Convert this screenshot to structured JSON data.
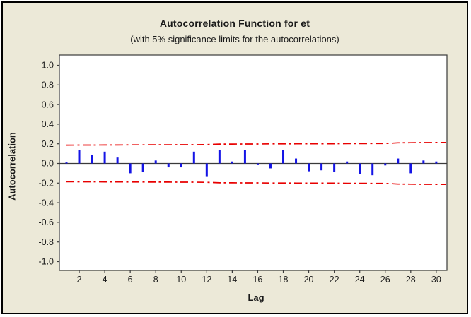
{
  "chart_data": {
    "type": "bar",
    "title": "Autocorrelation Function for et",
    "subtitle": "(with 5% significance limits for the autocorrelations)",
    "xlabel": "Lag",
    "ylabel": "Autocorrelation",
    "x": [
      1,
      2,
      3,
      4,
      5,
      6,
      7,
      8,
      9,
      10,
      11,
      12,
      13,
      14,
      15,
      16,
      17,
      18,
      19,
      20,
      21,
      22,
      23,
      24,
      25,
      26,
      27,
      28,
      29,
      30
    ],
    "values": [
      0.01,
      0.14,
      0.09,
      0.12,
      0.06,
      -0.1,
      -0.09,
      0.03,
      -0.04,
      -0.04,
      0.12,
      -0.13,
      0.14,
      0.02,
      0.14,
      -0.01,
      -0.05,
      0.14,
      0.05,
      -0.08,
      -0.07,
      -0.09,
      0.02,
      -0.11,
      -0.12,
      -0.02,
      0.05,
      -0.1,
      0.03,
      0.02
    ],
    "significance_level": "5%",
    "limits_upper": [
      0.186,
      0.187,
      0.187,
      0.188,
      0.188,
      0.189,
      0.189,
      0.19,
      0.19,
      0.191,
      0.191,
      0.192,
      0.197,
      0.197,
      0.198,
      0.198,
      0.199,
      0.199,
      0.2,
      0.2,
      0.201,
      0.201,
      0.202,
      0.202,
      0.203,
      0.203,
      0.21,
      0.211,
      0.212,
      0.213
    ],
    "limits_lower": [
      -0.186,
      -0.187,
      -0.187,
      -0.188,
      -0.188,
      -0.189,
      -0.189,
      -0.19,
      -0.19,
      -0.191,
      -0.191,
      -0.192,
      -0.197,
      -0.197,
      -0.198,
      -0.198,
      -0.199,
      -0.199,
      -0.2,
      -0.2,
      -0.201,
      -0.201,
      -0.202,
      -0.202,
      -0.203,
      -0.203,
      -0.21,
      -0.211,
      -0.212,
      -0.213
    ],
    "ylim": [
      -1.0,
      1.0
    ],
    "xlim": [
      0.5,
      30.8
    ],
    "yticks": [
      "1.0",
      "0.8",
      "0.6",
      "0.4",
      "0.2",
      "0.0",
      "-0.2",
      "-0.4",
      "-0.6",
      "-0.8",
      "-1.0"
    ],
    "ytick_values": [
      1.0,
      0.8,
      0.6,
      0.4,
      0.2,
      0.0,
      -0.2,
      -0.4,
      -0.6,
      -0.8,
      -1.0
    ],
    "xticks": [
      2,
      4,
      6,
      8,
      10,
      12,
      14,
      16,
      18,
      20,
      22,
      24,
      26,
      28,
      30
    ],
    "grid": "off",
    "legend": "none",
    "colors": {
      "bar": "#1414e6",
      "limit_line": "#e80000",
      "axis_line": "#3a3a3a",
      "frame": "#3a3a3a",
      "plot_background": "#ffffff",
      "figure_background": "#ece9d8",
      "outer_border": "#000000",
      "text": "#1a1a1a"
    }
  }
}
